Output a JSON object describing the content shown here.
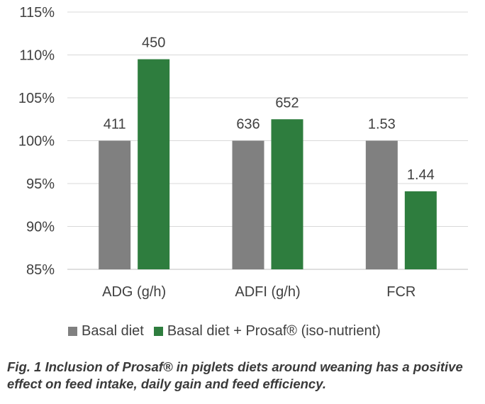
{
  "chart_data": {
    "type": "bar",
    "categories": [
      "ADG (g/h)",
      "ADFI (g/h)",
      "FCR"
    ],
    "series": [
      {
        "name": "Basal diet",
        "color": "#808080",
        "values": [
          100,
          100,
          100
        ],
        "labels": [
          "411",
          "636",
          "1.53"
        ]
      },
      {
        "name": "Basal diet + Prosaf® (iso-nutrient)",
        "color": "#2e7d3e",
        "values": [
          109.5,
          102.5,
          94.1
        ],
        "labels": [
          "450",
          "652",
          "1.44"
        ]
      }
    ],
    "ylim": [
      85,
      115
    ],
    "yticks": [
      85,
      90,
      95,
      100,
      105,
      110,
      115
    ],
    "ytick_labels": [
      "85%",
      "90%",
      "95%",
      "100%",
      "105%",
      "110%",
      "115%"
    ],
    "grid": true,
    "legend_position": "bottom",
    "title": "",
    "xlabel": "",
    "ylabel": ""
  },
  "caption": "Fig. 1 Inclusion of Prosaf® in piglets diets around weaning has a positive effect on feed intake, daily gain and feed efficiency."
}
